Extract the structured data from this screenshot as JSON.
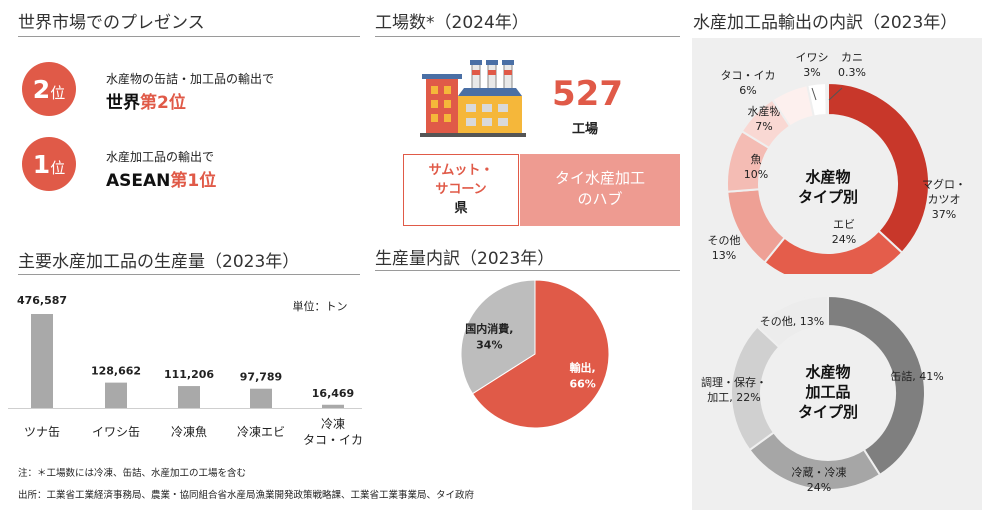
{
  "sections": {
    "market": "世界市場でのプレゼンス",
    "factories": "工場数*（2024年）",
    "production": "主要水産加工品の生産量（2023年）",
    "breakdown": "生産量内訳（2023年）",
    "exports": "水産加工品輸出の内訳（2023年）"
  },
  "ranks": [
    {
      "num": "2",
      "unit": "位",
      "line1": "水産物の缶詰・加工品の輸出で",
      "pre": "世界",
      "post": "第2位"
    },
    {
      "num": "1",
      "unit": "位",
      "line1": "水産加工品の輸出で",
      "pre": "ASEAN",
      "post": "第1位"
    }
  ],
  "factory": {
    "count": "527",
    "unit": "工場",
    "province_line1": "サムット・",
    "province_line2": "サコーン",
    "province_line3": "県",
    "hub_line1": "タイ水産加工",
    "hub_line2": "のハブ"
  },
  "colors": {
    "accent": "#e05a48",
    "bar": "#a9a9a9",
    "panel": "#efefef"
  },
  "notes": {
    "footnote": "注：＊工場数には冷凍、缶詰、水産加工の工場を含む",
    "source": "出所：工業省工業経済事務局、農業・協同組合省水産局漁業開発政策戦略課、工業省工業事業局、タイ政府"
  },
  "chart_data": [
    {
      "type": "bar",
      "unit_label": "単位：トン",
      "categories": [
        "ツナ缶",
        "イワシ缶",
        "冷凍魚",
        "冷凍エビ",
        [
          "冷凍",
          "タコ・イカ"
        ]
      ],
      "values": [
        476587,
        128662,
        111206,
        97789,
        16469
      ],
      "value_labels": [
        "476,587",
        "128,662",
        "111,206",
        "97,789",
        "16,469"
      ]
    },
    {
      "type": "pie",
      "slices": [
        {
          "label": "輸出,",
          "pct": "66%",
          "value": 66,
          "color": "#e05a48"
        },
        {
          "label": "国内消費,",
          "pct": "34%",
          "value": 34,
          "color": "#bdbdbd"
        }
      ]
    },
    {
      "type": "pie",
      "center_line1": "水産物",
      "center_line2": "タイプ別",
      "slices": [
        {
          "label": [
            "マグロ・",
            "カツオ",
            "37%"
          ],
          "value": 37,
          "color": "#c8372a"
        },
        {
          "label": [
            "エビ",
            "24%"
          ],
          "value": 24,
          "color": "#e45d4b"
        },
        {
          "label": [
            "その他",
            "13%"
          ],
          "value": 13,
          "color": "#eea095"
        },
        {
          "label": [
            "魚",
            "10%"
          ],
          "value": 10,
          "color": "#f4bcb4"
        },
        {
          "label": [
            "水産物",
            "7%"
          ],
          "value": 7,
          "color": "#f9d8d3"
        },
        {
          "label": [
            "タコ・イカ",
            "6%"
          ],
          "value": 6,
          "color": "#fdf0ee"
        },
        {
          "label": [
            "イワシ",
            "3%"
          ],
          "value": 3,
          "color": "#ffffff"
        },
        {
          "label": [
            "カニ",
            "0.3%"
          ],
          "value": 0.3,
          "color": "#ffffff"
        }
      ]
    },
    {
      "type": "pie",
      "center_line1": "水産物",
      "center_line2": "加工品",
      "center_line3": "タイプ別",
      "slices": [
        {
          "label": [
            "缶詰, 41%"
          ],
          "value": 41,
          "color": "#7f7f7f"
        },
        {
          "label": [
            "冷蔵・冷凍",
            "24%"
          ],
          "value": 24,
          "color": "#a6a6a6"
        },
        {
          "label": [
            "調理・保存・",
            "加工, 22%"
          ],
          "value": 22,
          "color": "#d0d0d0"
        },
        {
          "label": [
            "その他, 13%"
          ],
          "value": 13,
          "color": "#ececec"
        }
      ]
    }
  ]
}
